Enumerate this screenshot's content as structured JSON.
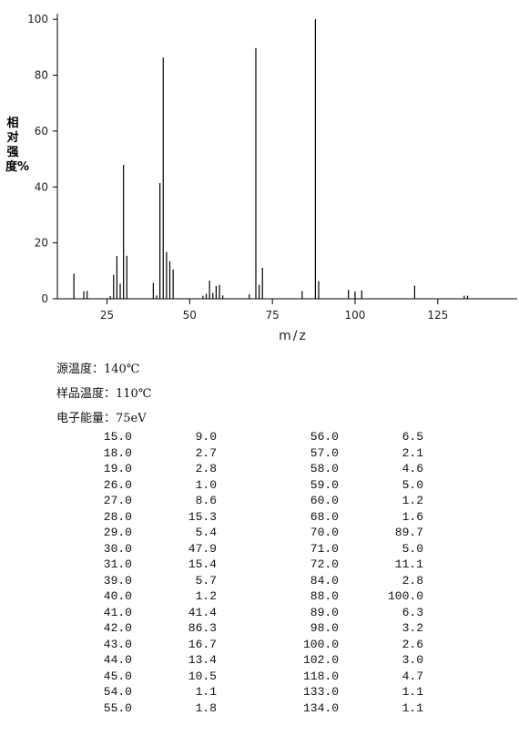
{
  "chart_data": {
    "type": "bar",
    "x_label": "m/z",
    "y_label": "相对强度%",
    "x": [
      15,
      18,
      19,
      26,
      27,
      28,
      29,
      30,
      31,
      39,
      40,
      41,
      42,
      43,
      44,
      45,
      54,
      55,
      56,
      57,
      58,
      59,
      60,
      68,
      70,
      71,
      72,
      84,
      88,
      89,
      98,
      100,
      102,
      118,
      133,
      134
    ],
    "x_labels": [
      "15.0",
      "18.0",
      "19.0",
      "26.0",
      "27.0",
      "28.0",
      "29.0",
      "30.0",
      "31.0",
      "39.0",
      "40.0",
      "41.0",
      "42.0",
      "43.0",
      "44.0",
      "45.0",
      "54.0",
      "55.0",
      "56.0",
      "57.0",
      "58.0",
      "59.0",
      "60.0",
      "68.0",
      "70.0",
      "71.0",
      "72.0",
      "84.0",
      "88.0",
      "89.0",
      "98.0",
      "100.0",
      "102.0",
      "118.0",
      "133.0",
      "134.0"
    ],
    "values": [
      9.0,
      2.7,
      2.8,
      1.0,
      8.6,
      15.3,
      5.4,
      47.9,
      15.4,
      5.7,
      1.2,
      41.4,
      86.3,
      16.7,
      13.4,
      10.5,
      1.1,
      1.8,
      6.5,
      2.1,
      4.6,
      5.0,
      1.2,
      1.6,
      89.7,
      5.0,
      11.1,
      2.8,
      100.0,
      6.3,
      3.2,
      2.6,
      3.0,
      4.7,
      1.1,
      1.1
    ],
    "value_labels": [
      "9.0",
      "2.7",
      "2.8",
      "1.0",
      "8.6",
      "15.3",
      "5.4",
      "47.9",
      "15.4",
      "5.7",
      "1.2",
      "41.4",
      "86.3",
      "16.7",
      "13.4",
      "10.5",
      "1.1",
      "1.8",
      "6.5",
      "2.1",
      "4.6",
      "5.0",
      "1.2",
      "1.6",
      "89.7",
      "5.0",
      "11.1",
      "2.8",
      "100.0",
      "6.3",
      "3.2",
      "2.6",
      "3.0",
      "4.7",
      "1.1",
      "1.1"
    ],
    "color": "#000000",
    "xlim": [
      10,
      149
    ],
    "xticks": [
      25,
      50,
      75,
      100,
      125
    ],
    "ylim": [
      0,
      102
    ],
    "yticks": [
      0,
      20,
      40,
      60,
      80,
      100
    ]
  },
  "conditions": [
    "源温度：140℃",
    "样品温度：110℃",
    "电子能量：75eV"
  ]
}
